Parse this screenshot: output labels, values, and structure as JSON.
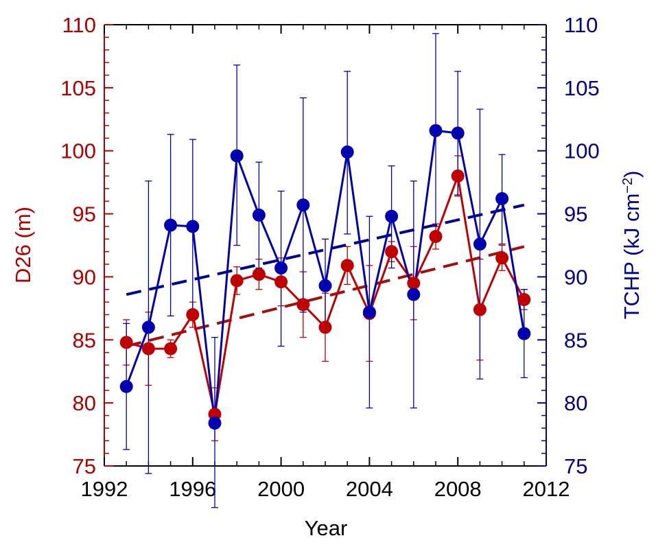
{
  "chart_data": {
    "type": "line",
    "xlabel": "Year",
    "ylabel_left": "D26 (m)",
    "ylabel_right": "TCHP (kJ cm",
    "ylabel_right_sup": "−2",
    "ylabel_right_close": ")",
    "xlim": [
      1992,
      2012
    ],
    "ylim_left": [
      75,
      110
    ],
    "ylim_right": [
      75,
      110
    ],
    "x_ticks": [
      1992,
      1996,
      2000,
      2004,
      2008,
      2012
    ],
    "y_ticks": [
      75,
      80,
      85,
      90,
      95,
      100,
      105,
      110
    ],
    "grid": false,
    "colors": {
      "d26": "#c00000",
      "tchp": "#0000b0",
      "d26_trend": "#a01010",
      "tchp_trend": "#000090"
    },
    "x": [
      1993,
      1994,
      1995,
      1996,
      1997,
      1998,
      1999,
      2000,
      2001,
      2002,
      2003,
      2004,
      2005,
      2006,
      2007,
      2008,
      2009,
      2010,
      2011
    ],
    "series": [
      {
        "key": "d26",
        "axis": "left",
        "values": [
          84.8,
          84.3,
          84.3,
          87.0,
          79.1,
          89.7,
          90.2,
          89.6,
          87.8,
          86.0,
          90.9,
          87.1,
          92.0,
          89.5,
          93.2,
          98.0,
          87.4,
          91.5,
          88.2
        ],
        "err_lower": [
          83.0,
          81.4,
          83.6,
          86.0,
          77.0,
          88.6,
          89.0,
          87.7,
          85.2,
          83.3,
          89.4,
          83.3,
          91.2,
          86.6,
          92.2,
          96.4,
          83.4,
          90.5,
          87.4
        ],
        "err_upper": [
          86.6,
          87.2,
          85.0,
          88.0,
          81.2,
          90.8,
          91.4,
          91.5,
          90.4,
          88.7,
          92.4,
          90.9,
          92.8,
          92.4,
          94.2,
          99.6,
          91.4,
          92.5,
          89.0
        ],
        "trend": [
          84.5,
          92.4
        ]
      },
      {
        "key": "tchp",
        "axis": "right",
        "values": [
          81.3,
          86.0,
          94.1,
          94.0,
          78.4,
          99.6,
          94.9,
          90.7,
          95.7,
          89.3,
          99.9,
          87.2,
          94.8,
          88.6,
          101.6,
          101.4,
          92.6,
          96.2,
          85.5
        ],
        "err_lower": [
          76.3,
          74.4,
          86.9,
          87.0,
          71.7,
          92.5,
          90.7,
          84.5,
          87.2,
          85.6,
          93.4,
          79.6,
          90.7,
          79.6,
          94.0,
          96.5,
          81.9,
          92.6,
          82.0
        ],
        "err_upper": [
          86.3,
          97.6,
          101.3,
          100.9,
          85.2,
          106.8,
          99.1,
          96.8,
          104.2,
          93.0,
          106.3,
          94.8,
          98.8,
          97.6,
          109.3,
          106.3,
          103.3,
          99.7,
          89.0
        ],
        "trend": [
          88.6,
          95.7
        ]
      }
    ]
  }
}
